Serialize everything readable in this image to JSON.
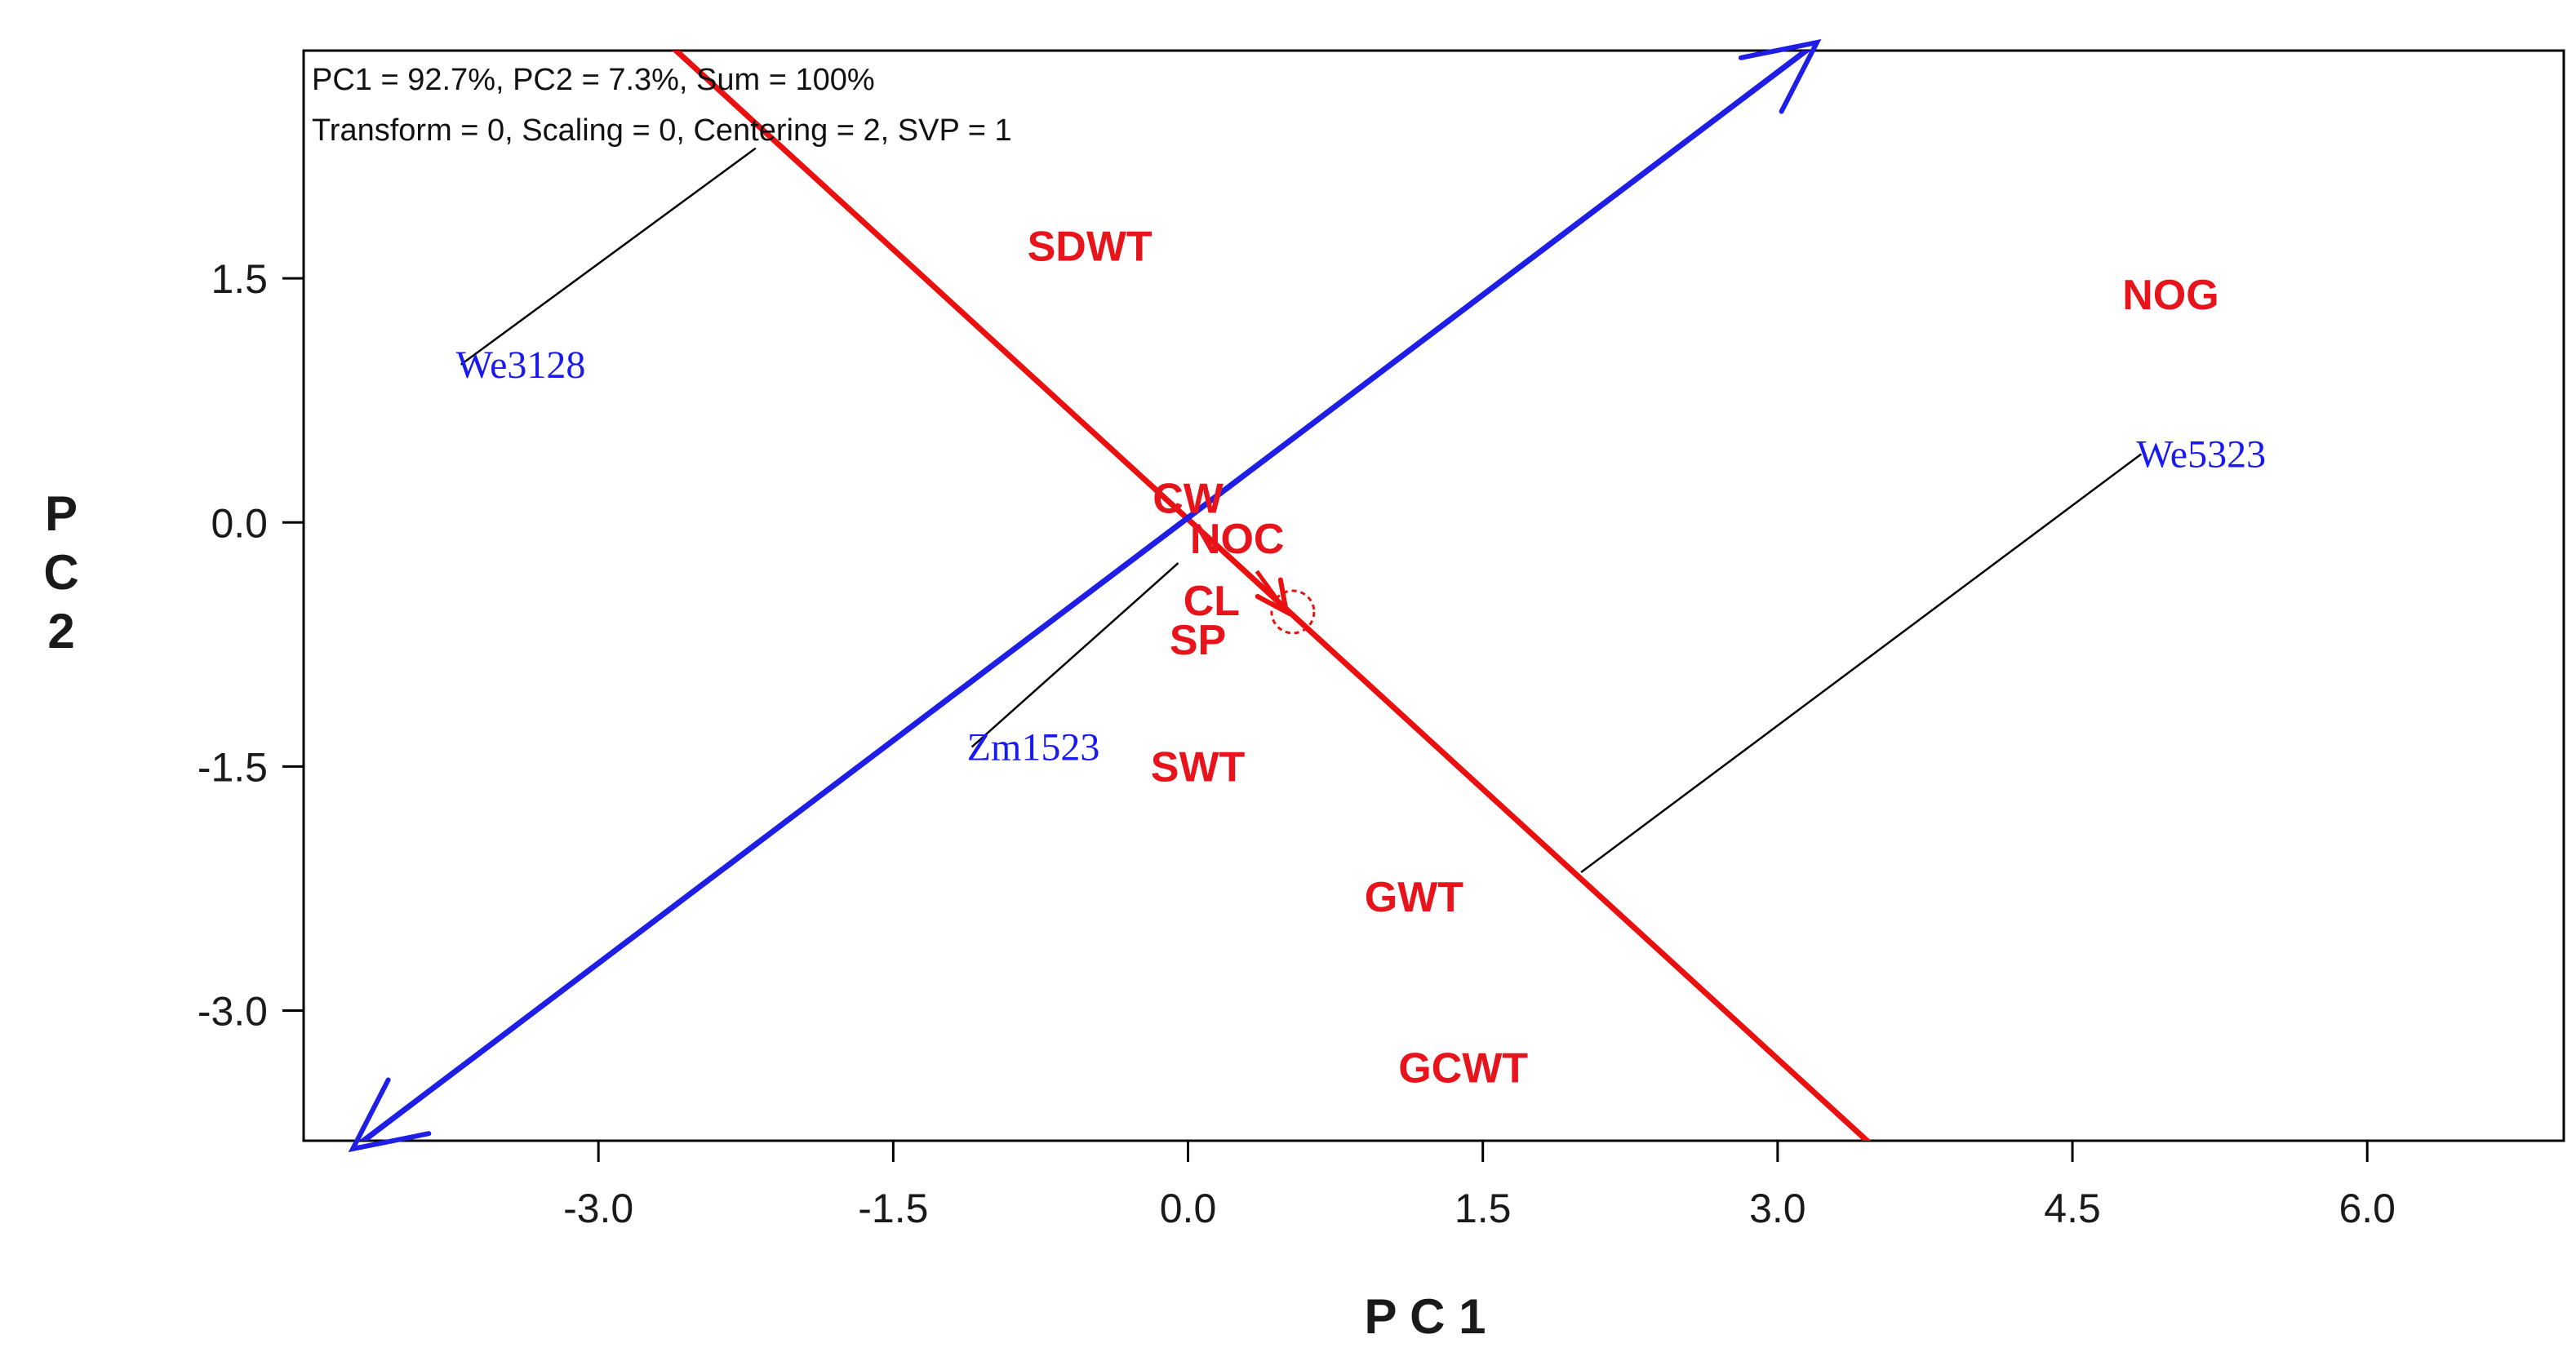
{
  "chart_data": {
    "type": "scatter",
    "subtype": "GGE biplot (which-won-where / discriminativeness)",
    "xlabel": "PC1",
    "ylabel": "PC2",
    "xlabel_display": "P C 1",
    "ylabel_display": [
      "P",
      "C",
      "2"
    ],
    "xlim": [
      -4.5,
      7.0
    ],
    "ylim": [
      -3.8,
      2.9
    ],
    "xticks": [
      -3.0,
      -1.5,
      0.0,
      1.5,
      3.0,
      4.5,
      6.0
    ],
    "xtick_labels": [
      "-3.0",
      "-1.5",
      "0.0",
      "1.5",
      "3.0",
      "4.5",
      "6.0"
    ],
    "yticks": [
      1.5,
      0.0,
      -1.5,
      -3.0
    ],
    "ytick_labels": [
      "1.5",
      "0.0",
      "-1.5",
      "-3.0"
    ],
    "info_lines": [
      "PC1 = 92.7%, PC2 = 7.3%, Sum = 100%",
      "Transform = 0, Scaling = 0, Centering = 2, SVP = 1"
    ],
    "environments": [
      {
        "name": "SDWT",
        "x": -0.5,
        "y": 1.7
      },
      {
        "name": "NOG",
        "x": 5.0,
        "y": 1.4
      },
      {
        "name": "CW",
        "x": 0.0,
        "y": 0.15
      },
      {
        "name": "NOC",
        "x": 0.25,
        "y": -0.1
      },
      {
        "name": "CL",
        "x": 0.12,
        "y": -0.48
      },
      {
        "name": "SP",
        "x": 0.05,
        "y": -0.72
      },
      {
        "name": "SWT",
        "x": 0.05,
        "y": -1.5
      },
      {
        "name": "GWT",
        "x": 1.15,
        "y": -2.3
      },
      {
        "name": "GCWT",
        "x": 1.4,
        "y": -3.35
      }
    ],
    "genotypes": [
      {
        "name": "We3128",
        "x": -3.7,
        "y": 0.97
      },
      {
        "name": "We5323",
        "x": 4.85,
        "y": 0.42
      },
      {
        "name": "Zm1523",
        "x": -1.1,
        "y": -1.38
      }
    ],
    "projection_lines": [
      {
        "genotype": "We3128",
        "from": [
          -3.7,
          0.97
        ],
        "to": [
          -2.2,
          2.3
        ]
      },
      {
        "genotype": "We5323",
        "from": [
          4.85,
          0.42
        ],
        "to": [
          2.0,
          -2.15
        ]
      },
      {
        "genotype": "Zm1523",
        "from": [
          -1.1,
          -1.38
        ],
        "to": [
          -0.05,
          -0.25
        ]
      }
    ],
    "ate_abscissa": {
      "from": [
        -4.25,
        -3.85
      ],
      "to": [
        3.2,
        2.95
      ],
      "arrow_both_ends": true
    },
    "ate_ordinate": {
      "from": [
        -2.65,
        2.95
      ],
      "to": [
        3.5,
        -3.85
      ]
    },
    "average_environment": {
      "x": 0.5,
      "y": -0.55,
      "arrow_from": [
        0.35,
        -0.3
      ]
    },
    "colors": {
      "environment": "#e8141c",
      "genotype": "#1a1af0",
      "abscissa": "#1e1ee6",
      "ordinate": "#ea1010",
      "projection": "#000000",
      "frame": "#000000"
    }
  }
}
